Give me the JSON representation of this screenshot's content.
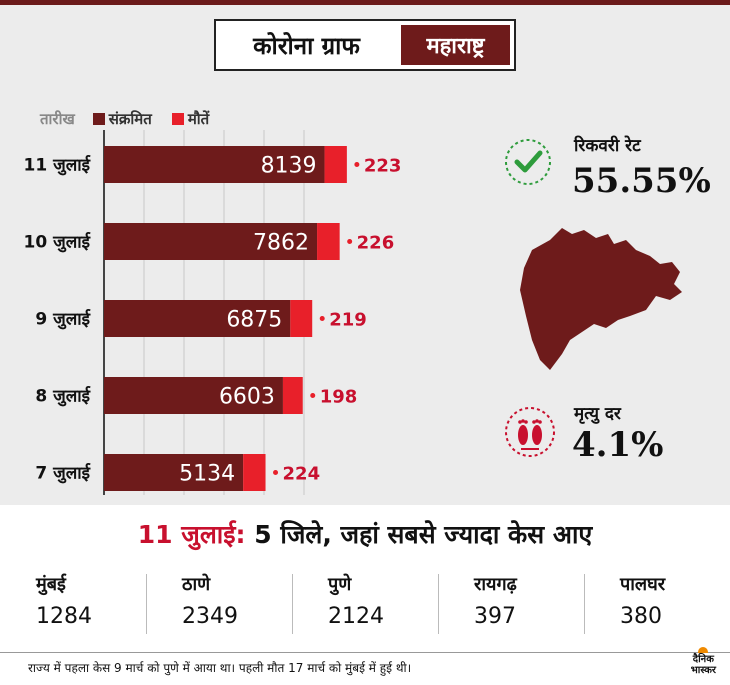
{
  "header": {
    "title": "कोरोना ग्राफ",
    "state": "महाराष्ट्र"
  },
  "legend": {
    "date_label": "तारीख",
    "infected_label": "संक्रमित",
    "deaths_label": "मौतें"
  },
  "chart_data": {
    "type": "bar",
    "orientation": "horizontal",
    "stacked": true,
    "categories": [
      "11 जुलाई",
      "10 जुलाई",
      "9 जुलाई",
      "8 जुलाई",
      "7 जुलाई"
    ],
    "series": [
      {
        "name": "संक्रमित",
        "color": "#6e1b1b",
        "values": [
          8139,
          7862,
          6875,
          6603,
          5134
        ]
      },
      {
        "name": "मौतें",
        "color": "#e8202a",
        "values": [
          223,
          226,
          219,
          198,
          224
        ]
      }
    ],
    "grid": true
  },
  "recovery": {
    "label": "रिकवरी रेट",
    "value": "55.55%"
  },
  "mortality": {
    "label": "मृत्यु दर",
    "value": "4.1%"
  },
  "top_districts": {
    "date": "11 जुलाई:",
    "headline": "5 जिले, जहां सबसे ज्यादा केस आए",
    "items": [
      {
        "name": "मुंबई",
        "value": "1284"
      },
      {
        "name": "ठाणे",
        "value": "2349"
      },
      {
        "name": "पुणे",
        "value": "2124"
      },
      {
        "name": "रायगढ़",
        "value": "397"
      },
      {
        "name": "पालघर",
        "value": "380"
      }
    ]
  },
  "footer": {
    "note": "राज्य में पहला केस 9 मार्च को पुणे में आया था। पहली मौत 17 मार्च को मुंबई में हुई थी।"
  },
  "brand": {
    "line1": "दैनिक",
    "line2": "भास्कर"
  },
  "colors": {
    "infected": "#6e1b1b",
    "deaths": "#e8202a",
    "check": "#2e9c3c"
  }
}
